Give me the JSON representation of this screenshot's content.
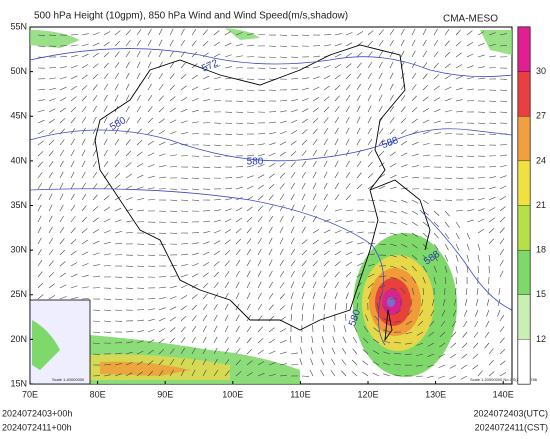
{
  "header": {
    "title": "500 hPa Height (10gpm), 850 hPa Wind and Wind Speed(m/s,shadow)",
    "source": "CMA-MESO"
  },
  "map": {
    "lat_labels": [
      "55N",
      "50N",
      "45N",
      "40N",
      "35N",
      "30N",
      "25N",
      "20N",
      "15N"
    ],
    "lon_labels": [
      "70E",
      "80E",
      "90E",
      "100E",
      "110E",
      "120E",
      "130E",
      "140E"
    ],
    "contour_labels": [
      "572",
      "580",
      "580",
      "580",
      "588",
      "588"
    ],
    "inset_scale": "Scale 1:40000000",
    "map_scale": "Scale 1:20000000 No.GS(2019) 1786"
  },
  "colorbar": {
    "ticks": [
      12,
      15,
      18,
      21,
      24,
      27,
      30
    ]
  },
  "footer": {
    "left": [
      "2024072403+00h",
      "2024072411+00h"
    ],
    "right": [
      "2024072403(UTC)",
      "2024072411(CST)"
    ]
  }
}
